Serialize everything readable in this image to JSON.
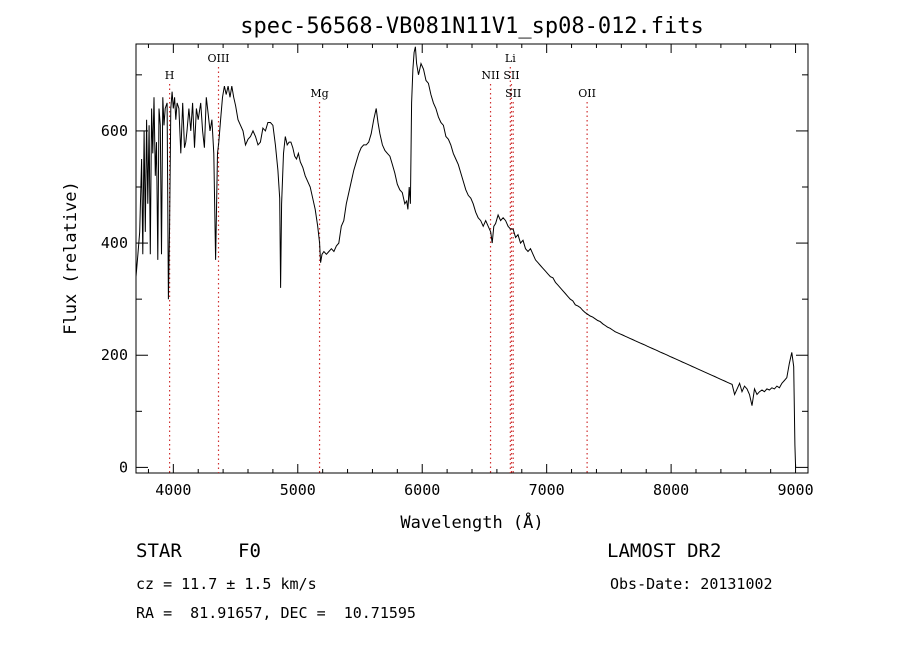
{
  "chart_data": {
    "type": "line",
    "title": "spec-56568-VB081N11V1_sp08-012.fits",
    "xlabel": "Wavelength (Å)",
    "ylabel": "Flux (relative)",
    "xlim": [
      3700,
      9100
    ],
    "ylim": [
      -10,
      755
    ],
    "xticks": [
      4000,
      5000,
      6000,
      7000,
      8000,
      9000
    ],
    "yticks": [
      0,
      200,
      400,
      600
    ],
    "grid": false,
    "line_color": "#000000",
    "marker_color": "#d03030",
    "series": [
      {
        "values": [
          [
            3700,
            340
          ],
          [
            3715,
            380
          ],
          [
            3730,
            420
          ],
          [
            3745,
            550
          ],
          [
            3755,
            380
          ],
          [
            3765,
            600
          ],
          [
            3775,
            420
          ],
          [
            3785,
            620
          ],
          [
            3795,
            470
          ],
          [
            3805,
            610
          ],
          [
            3815,
            380
          ],
          [
            3825,
            640
          ],
          [
            3835,
            560
          ],
          [
            3845,
            660
          ],
          [
            3855,
            520
          ],
          [
            3865,
            580
          ],
          [
            3875,
            370
          ],
          [
            3885,
            640
          ],
          [
            3895,
            610
          ],
          [
            3905,
            380
          ],
          [
            3915,
            660
          ],
          [
            3925,
            610
          ],
          [
            3935,
            640
          ],
          [
            3950,
            650
          ],
          [
            3960,
            300
          ],
          [
            3970,
            430
          ],
          [
            3980,
            640
          ],
          [
            3990,
            670
          ],
          [
            4000,
            640
          ],
          [
            4010,
            660
          ],
          [
            4020,
            620
          ],
          [
            4030,
            650
          ],
          [
            4045,
            640
          ],
          [
            4060,
            560
          ],
          [
            4075,
            650
          ],
          [
            4090,
            570
          ],
          [
            4100,
            580
          ],
          [
            4110,
            600
          ],
          [
            4125,
            640
          ],
          [
            4140,
            600
          ],
          [
            4155,
            650
          ],
          [
            4170,
            570
          ],
          [
            4185,
            640
          ],
          [
            4200,
            620
          ],
          [
            4220,
            650
          ],
          [
            4235,
            600
          ],
          [
            4250,
            570
          ],
          [
            4265,
            660
          ],
          [
            4280,
            630
          ],
          [
            4295,
            600
          ],
          [
            4310,
            620
          ],
          [
            4325,
            560
          ],
          [
            4340,
            370
          ],
          [
            4355,
            560
          ],
          [
            4365,
            580
          ],
          [
            4380,
            620
          ],
          [
            4395,
            660
          ],
          [
            4410,
            680
          ],
          [
            4425,
            665
          ],
          [
            4440,
            680
          ],
          [
            4455,
            660
          ],
          [
            4470,
            680
          ],
          [
            4485,
            660
          ],
          [
            4500,
            645
          ],
          [
            4520,
            620
          ],
          [
            4540,
            610
          ],
          [
            4560,
            600
          ],
          [
            4580,
            575
          ],
          [
            4600,
            585
          ],
          [
            4620,
            590
          ],
          [
            4640,
            600
          ],
          [
            4660,
            590
          ],
          [
            4680,
            575
          ],
          [
            4700,
            580
          ],
          [
            4720,
            605
          ],
          [
            4740,
            600
          ],
          [
            4760,
            615
          ],
          [
            4780,
            615
          ],
          [
            4800,
            610
          ],
          [
            4820,
            575
          ],
          [
            4840,
            530
          ],
          [
            4855,
            480
          ],
          [
            4862,
            320
          ],
          [
            4870,
            470
          ],
          [
            4885,
            560
          ],
          [
            4900,
            590
          ],
          [
            4915,
            575
          ],
          [
            4930,
            580
          ],
          [
            4945,
            580
          ],
          [
            4960,
            570
          ],
          [
            4975,
            555
          ],
          [
            4990,
            550
          ],
          [
            5005,
            560
          ],
          [
            5020,
            545
          ],
          [
            5040,
            535
          ],
          [
            5060,
            520
          ],
          [
            5080,
            510
          ],
          [
            5100,
            500
          ],
          [
            5120,
            480
          ],
          [
            5140,
            460
          ],
          [
            5160,
            430
          ],
          [
            5175,
            400
          ],
          [
            5183,
            365
          ],
          [
            5195,
            380
          ],
          [
            5210,
            385
          ],
          [
            5230,
            380
          ],
          [
            5250,
            385
          ],
          [
            5270,
            390
          ],
          [
            5290,
            385
          ],
          [
            5310,
            395
          ],
          [
            5330,
            400
          ],
          [
            5350,
            430
          ],
          [
            5370,
            440
          ],
          [
            5390,
            470
          ],
          [
            5410,
            490
          ],
          [
            5430,
            510
          ],
          [
            5450,
            530
          ],
          [
            5470,
            545
          ],
          [
            5490,
            560
          ],
          [
            5510,
            570
          ],
          [
            5530,
            575
          ],
          [
            5550,
            575
          ],
          [
            5570,
            580
          ],
          [
            5590,
            595
          ],
          [
            5610,
            620
          ],
          [
            5630,
            640
          ],
          [
            5645,
            615
          ],
          [
            5660,
            595
          ],
          [
            5680,
            575
          ],
          [
            5700,
            565
          ],
          [
            5720,
            560
          ],
          [
            5740,
            555
          ],
          [
            5760,
            540
          ],
          [
            5780,
            525
          ],
          [
            5800,
            505
          ],
          [
            5820,
            495
          ],
          [
            5840,
            490
          ],
          [
            5860,
            470
          ],
          [
            5875,
            475
          ],
          [
            5885,
            460
          ],
          [
            5895,
            500
          ],
          [
            5905,
            470
          ],
          [
            5915,
            650
          ],
          [
            5925,
            710
          ],
          [
            5935,
            740
          ],
          [
            5945,
            750
          ],
          [
            5955,
            720
          ],
          [
            5970,
            700
          ],
          [
            5990,
            720
          ],
          [
            6010,
            710
          ],
          [
            6030,
            690
          ],
          [
            6050,
            685
          ],
          [
            6070,
            665
          ],
          [
            6090,
            650
          ],
          [
            6110,
            640
          ],
          [
            6130,
            625
          ],
          [
            6150,
            615
          ],
          [
            6170,
            610
          ],
          [
            6190,
            590
          ],
          [
            6210,
            585
          ],
          [
            6230,
            575
          ],
          [
            6250,
            560
          ],
          [
            6270,
            550
          ],
          [
            6290,
            540
          ],
          [
            6310,
            525
          ],
          [
            6330,
            510
          ],
          [
            6350,
            495
          ],
          [
            6370,
            485
          ],
          [
            6390,
            480
          ],
          [
            6410,
            470
          ],
          [
            6430,
            455
          ],
          [
            6450,
            445
          ],
          [
            6470,
            440
          ],
          [
            6490,
            430
          ],
          [
            6510,
            440
          ],
          [
            6530,
            430
          ],
          [
            6550,
            420
          ],
          [
            6562,
            400
          ],
          [
            6575,
            430
          ],
          [
            6590,
            435
          ],
          [
            6610,
            450
          ],
          [
            6630,
            440
          ],
          [
            6650,
            445
          ],
          [
            6670,
            440
          ],
          [
            6690,
            430
          ],
          [
            6710,
            425
          ],
          [
            6730,
            425
          ],
          [
            6750,
            410
          ],
          [
            6770,
            415
          ],
          [
            6790,
            400
          ],
          [
            6810,
            405
          ],
          [
            6830,
            390
          ],
          [
            6850,
            385
          ],
          [
            6870,
            390
          ],
          [
            6890,
            380
          ],
          [
            6910,
            370
          ],
          [
            6930,
            365
          ],
          [
            6950,
            360
          ],
          [
            6970,
            355
          ],
          [
            6990,
            350
          ],
          [
            7010,
            345
          ],
          [
            7030,
            340
          ],
          [
            7050,
            338
          ],
          [
            7070,
            330
          ],
          [
            7090,
            325
          ],
          [
            7110,
            320
          ],
          [
            7130,
            315
          ],
          [
            7150,
            310
          ],
          [
            7170,
            305
          ],
          [
            7190,
            300
          ],
          [
            7210,
            297
          ],
          [
            7230,
            290
          ],
          [
            7250,
            288
          ],
          [
            7270,
            285
          ],
          [
            7290,
            280
          ],
          [
            7310,
            276
          ],
          [
            7330,
            273
          ],
          [
            7350,
            270
          ],
          [
            7370,
            268
          ],
          [
            7390,
            265
          ],
          [
            7410,
            262
          ],
          [
            7430,
            260
          ],
          [
            7450,
            256
          ],
          [
            7470,
            253
          ],
          [
            7490,
            250
          ],
          [
            7510,
            248
          ],
          [
            7530,
            245
          ],
          [
            7550,
            242
          ],
          [
            7570,
            240
          ],
          [
            7590,
            238
          ],
          [
            7610,
            236
          ],
          [
            7630,
            234
          ],
          [
            7650,
            232
          ],
          [
            7670,
            230
          ],
          [
            7690,
            228
          ],
          [
            7710,
            226
          ],
          [
            7730,
            224
          ],
          [
            7750,
            222
          ],
          [
            7770,
            220
          ],
          [
            7790,
            218
          ],
          [
            7810,
            216
          ],
          [
            7830,
            214
          ],
          [
            7850,
            212
          ],
          [
            7870,
            210
          ],
          [
            7890,
            208
          ],
          [
            7910,
            206
          ],
          [
            7930,
            204
          ],
          [
            7950,
            202
          ],
          [
            7970,
            200
          ],
          [
            7990,
            198
          ],
          [
            8010,
            196
          ],
          [
            8030,
            194
          ],
          [
            8050,
            192
          ],
          [
            8070,
            190
          ],
          [
            8090,
            188
          ],
          [
            8110,
            186
          ],
          [
            8130,
            184
          ],
          [
            8150,
            182
          ],
          [
            8170,
            180
          ],
          [
            8190,
            178
          ],
          [
            8210,
            176
          ],
          [
            8230,
            174
          ],
          [
            8250,
            172
          ],
          [
            8270,
            170
          ],
          [
            8290,
            168
          ],
          [
            8310,
            166
          ],
          [
            8330,
            164
          ],
          [
            8350,
            162
          ],
          [
            8370,
            160
          ],
          [
            8390,
            158
          ],
          [
            8410,
            156
          ],
          [
            8430,
            154
          ],
          [
            8450,
            152
          ],
          [
            8470,
            150
          ],
          [
            8490,
            148
          ],
          [
            8510,
            130
          ],
          [
            8530,
            140
          ],
          [
            8550,
            150
          ],
          [
            8570,
            135
          ],
          [
            8590,
            145
          ],
          [
            8610,
            140
          ],
          [
            8630,
            130
          ],
          [
            8650,
            110
          ],
          [
            8670,
            140
          ],
          [
            8690,
            130
          ],
          [
            8710,
            135
          ],
          [
            8730,
            138
          ],
          [
            8750,
            135
          ],
          [
            8770,
            140
          ],
          [
            8790,
            138
          ],
          [
            8810,
            142
          ],
          [
            8830,
            140
          ],
          [
            8850,
            145
          ],
          [
            8870,
            142
          ],
          [
            8890,
            150
          ],
          [
            8910,
            155
          ],
          [
            8930,
            160
          ],
          [
            8950,
            185
          ],
          [
            8970,
            205
          ],
          [
            8985,
            180
          ],
          [
            8995,
            40
          ],
          [
            9000,
            0
          ]
        ]
      }
    ],
    "line_markers": [
      {
        "label": "H",
        "wavelength": 3970,
        "row": 1
      },
      {
        "label": "OIII",
        "wavelength": 4363,
        "row": 0
      },
      {
        "label": "Mg",
        "wavelength": 5175,
        "row": 2
      },
      {
        "label": "NII",
        "wavelength": 6549,
        "row": 1
      },
      {
        "label": "Li",
        "wavelength": 6708,
        "row": 0
      },
      {
        "label": "SII",
        "wavelength": 6717,
        "row": 1
      },
      {
        "label": "SII",
        "wavelength": 6731,
        "row": 2
      },
      {
        "label": "OII",
        "wavelength": 7325,
        "row": 2
      }
    ]
  },
  "footer": {
    "object_class": "STAR",
    "subclass": "F0",
    "survey": "LAMOST DR2",
    "redshift_line": "cz = 11.7 ± 1.5 km/s",
    "obs_date_line": "Obs-Date: 20131002",
    "coords_line": "RA =  81.91657, DEC =  10.71595"
  }
}
